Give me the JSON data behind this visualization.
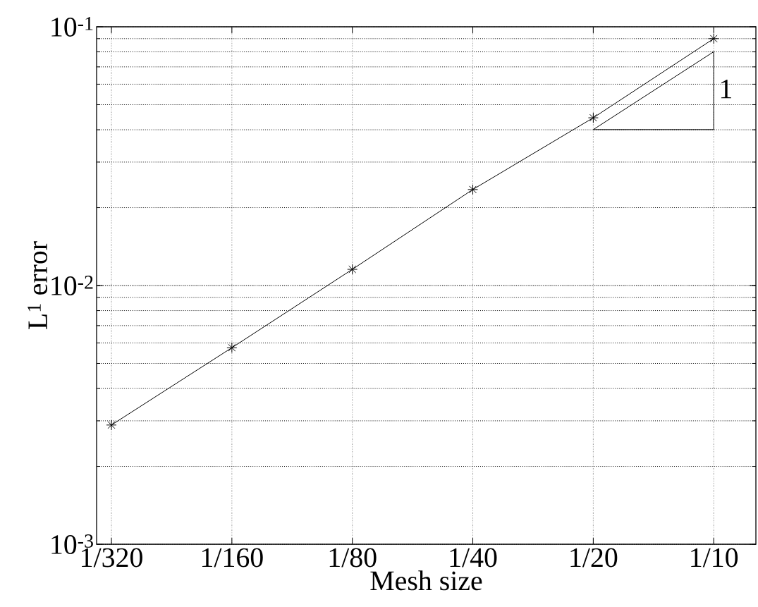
{
  "chart_data": {
    "type": "line",
    "xlabel": "Mesh size",
    "ylabel": "L$^{1}$ error",
    "log": "y",
    "grid": true,
    "categories": [
      "1/320",
      "1/160",
      "1/80",
      "1/40",
      "1/20",
      "1/10"
    ],
    "ylim": [
      0.001,
      0.1
    ],
    "yticks": [
      {
        "value": 0.001,
        "label": "10$^{-3}$"
      },
      {
        "value": 0.01,
        "label": "10$^{-2}$"
      },
      {
        "value": 0.1,
        "label": "10$^{-1}$"
      }
    ],
    "series": [
      {
        "color": "#000000",
        "marker": "cross",
        "line_style": "solid",
        "values": [
          0.00289,
          0.00575,
          0.01155,
          0.0235,
          0.0445,
          0.09
        ]
      }
    ],
    "annotations": [
      "1"
    ]
  }
}
